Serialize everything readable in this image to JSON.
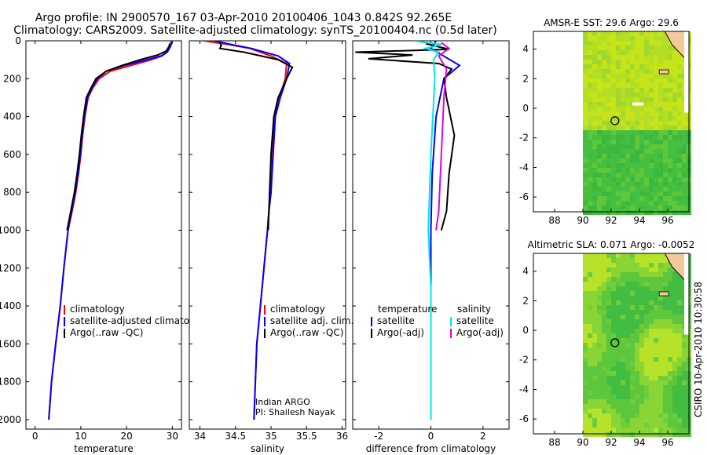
{
  "title_line1": "Argo profile: IN 2900570_167 03-Apr-2010 20100406_1043 0.842S 92.265E",
  "title_line2": "Climatology: CARS2009. Satellite-adjusted climatology: synTS_20100404.nc (0.5d later)",
  "side_stamp": "CSIRO 10-Apr-2010 10:30:58",
  "colors": {
    "climatology": "#ff0000",
    "satellite": "#0000ff",
    "argo": "#000000",
    "sal_satellite": "#00e5e5",
    "sal_argo": "#e000e0"
  },
  "chart_data": [
    {
      "type": "line",
      "name": "temperature-panel",
      "xlabel": "temperature",
      "ylabel": "",
      "xlim": [
        -2,
        32
      ],
      "ylim": [
        2050,
        0
      ],
      "xticks": [
        "0",
        "10",
        "20",
        "30"
      ],
      "yticks": [
        "0",
        "200",
        "400",
        "600",
        "800",
        "1000",
        "1200",
        "1400",
        "1600",
        "1800",
        "2000"
      ],
      "legend": [
        "climatology",
        "satellite-adjusted climatology",
        "Argo(..raw -QC)"
      ],
      "series": [
        {
          "name": "climatology",
          "color": "#ff0000",
          "x": [
            29.8,
            29.5,
            28.8,
            27.8,
            25.5,
            21.0,
            16.5,
            14.0,
            12.6,
            11.6,
            10.9,
            10.4,
            10.0,
            9.5,
            8.9,
            8.1,
            7.2,
            6.3,
            5.5,
            4.5,
            3.6,
            3.0
          ],
          "y": [
            0,
            30,
            60,
            80,
            100,
            130,
            160,
            200,
            250,
            300,
            400,
            500,
            600,
            700,
            800,
            900,
            1000,
            1200,
            1400,
            1600,
            1800,
            2000
          ]
        },
        {
          "name": "satellite-adjusted climatology",
          "color": "#0000ff",
          "x": [
            30.0,
            29.6,
            28.9,
            27.5,
            24.5,
            19.5,
            15.6,
            13.6,
            12.4,
            11.5,
            10.8,
            10.3,
            9.9,
            9.4,
            8.8,
            8.0,
            7.2,
            6.3,
            5.5,
            4.5,
            3.6,
            3.0
          ],
          "y": [
            0,
            30,
            60,
            80,
            100,
            130,
            160,
            200,
            250,
            300,
            400,
            500,
            600,
            700,
            800,
            900,
            1000,
            1200,
            1400,
            1600,
            1800,
            2000
          ]
        },
        {
          "name": "Argo(..raw -QC)",
          "color": "#000000",
          "x": [
            29.4,
            29.3,
            28.6,
            26.8,
            23.0,
            19.0,
            15.6,
            13.3,
            12.2,
            11.2,
            10.6,
            10.1,
            9.7,
            9.2,
            8.6,
            7.8,
            7.0
          ],
          "y": [
            15,
            30,
            55,
            75,
            100,
            130,
            160,
            200,
            250,
            300,
            400,
            500,
            600,
            700,
            800,
            900,
            1000
          ]
        }
      ]
    },
    {
      "type": "line",
      "name": "salinity-panel",
      "xlabel": "salinity",
      "ylabel": "",
      "xlim": [
        33.85,
        36.05
      ],
      "ylim": [
        2050,
        0
      ],
      "xticks": [
        "34",
        "34.5",
        "35",
        "35.5",
        "36"
      ],
      "legend": [
        "climatology",
        "satellite adj. clim.",
        "Argo(..raw -QC)"
      ],
      "annotation": [
        "Indian ARGO",
        "PI: Shailesh Nayak"
      ],
      "series": [
        {
          "name": "climatology",
          "color": "#ff0000",
          "x": [
            34.05,
            34.4,
            34.7,
            35.0,
            35.22,
            35.2,
            35.12,
            35.05,
            35.02,
            35.0,
            34.97,
            34.95,
            34.9,
            34.85,
            34.8,
            34.78,
            34.76
          ],
          "y": [
            0,
            20,
            40,
            80,
            120,
            200,
            300,
            400,
            600,
            800,
            900,
            1000,
            1200,
            1400,
            1600,
            1800,
            2000
          ]
        },
        {
          "name": "satellite adj. clim.",
          "color": "#0000ff",
          "x": [
            34.2,
            34.45,
            34.72,
            35.1,
            35.26,
            35.22,
            35.13,
            35.06,
            35.03,
            35.0,
            34.97,
            34.95,
            34.9,
            34.85,
            34.8,
            34.78,
            34.76
          ],
          "y": [
            0,
            20,
            40,
            80,
            120,
            200,
            300,
            400,
            600,
            800,
            900,
            1000,
            1200,
            1400,
            1600,
            1800,
            2000
          ]
        },
        {
          "name": "Argo(..raw -QC)",
          "color": "#000000",
          "x": [
            34.28,
            34.3,
            34.28,
            34.62,
            35.1,
            35.3,
            35.22,
            35.1,
            35.04,
            35.0,
            34.98,
            34.96
          ],
          "y": [
            10,
            25,
            40,
            60,
            100,
            140,
            200,
            300,
            400,
            600,
            800,
            1000
          ]
        }
      ]
    },
    {
      "type": "line",
      "name": "difference-panel",
      "xlabel": "difference from climatology",
      "ylabel": "",
      "xlim": [
        -3.0,
        3.0
      ],
      "ylim": [
        2050,
        0
      ],
      "xticks": [
        "-2",
        "0",
        "2"
      ],
      "legend_headers": [
        "temperature",
        "salinity"
      ],
      "legend": [
        "satellite",
        "Argo(-adj)",
        "satellite",
        "Argo(-adj)"
      ],
      "series": [
        {
          "name": "temperature satellite",
          "color": "#0000ff",
          "x": [
            0.2,
            0.0,
            1.1,
            0.5,
            0.2,
            0.05,
            0.0,
            0.0,
            0.0,
            0.0
          ],
          "y": [
            0,
            40,
            130,
            200,
            400,
            700,
            1000,
            1400,
            1800,
            2000
          ]
        },
        {
          "name": "temperature Argo(-adj)",
          "color": "#000000",
          "x": [
            -0.2,
            0.7,
            -2.9,
            -0.7,
            -2.4,
            0.3,
            0.8,
            0.5,
            0.6,
            0.9,
            0.7,
            0.6,
            0.4
          ],
          "y": [
            15,
            45,
            60,
            75,
            95,
            120,
            150,
            200,
            300,
            500,
            700,
            900,
            1000
          ]
        },
        {
          "name": "salinity satellite",
          "color": "#00e5e5",
          "x": [
            -0.7,
            0.4,
            -0.2,
            0.3,
            0.1,
            0.15,
            0.0,
            -0.1,
            0.0,
            0.0,
            0.0
          ],
          "y": [
            0,
            20,
            40,
            60,
            100,
            200,
            600,
            1000,
            1300,
            1600,
            2000
          ]
        },
        {
          "name": "salinity Argo(-adj)",
          "color": "#e000e0",
          "x": [
            0.4,
            0.7,
            0.3,
            0.6,
            0.5,
            0.4,
            0.3,
            0.2
          ],
          "y": [
            10,
            40,
            80,
            150,
            300,
            600,
            900,
            1000
          ]
        }
      ]
    },
    {
      "type": "heatmap",
      "name": "sst-map",
      "title": "AMSR-E SST: 29.6 Argo: 29.6",
      "xlim": [
        86.5,
        97.5
      ],
      "ylim": [
        -7,
        5.2
      ],
      "xticks": [
        "88",
        "90",
        "92",
        "94",
        "96"
      ],
      "yticks": [
        "-6",
        "-4",
        "-2",
        "0",
        "2",
        "4"
      ],
      "float_position": {
        "lon": 92.265,
        "lat": -0.842
      }
    },
    {
      "type": "heatmap",
      "name": "sla-map",
      "title": "Altimetric SLA: 0.071 Argo: -0.0052",
      "xlim": [
        86.5,
        97.5
      ],
      "ylim": [
        -7,
        5.2
      ],
      "xticks": [
        "88",
        "90",
        "92",
        "94",
        "96"
      ],
      "yticks": [
        "-6",
        "-4",
        "-2",
        "0",
        "2",
        "4"
      ],
      "float_position": {
        "lon": 92.265,
        "lat": -0.842
      }
    }
  ]
}
